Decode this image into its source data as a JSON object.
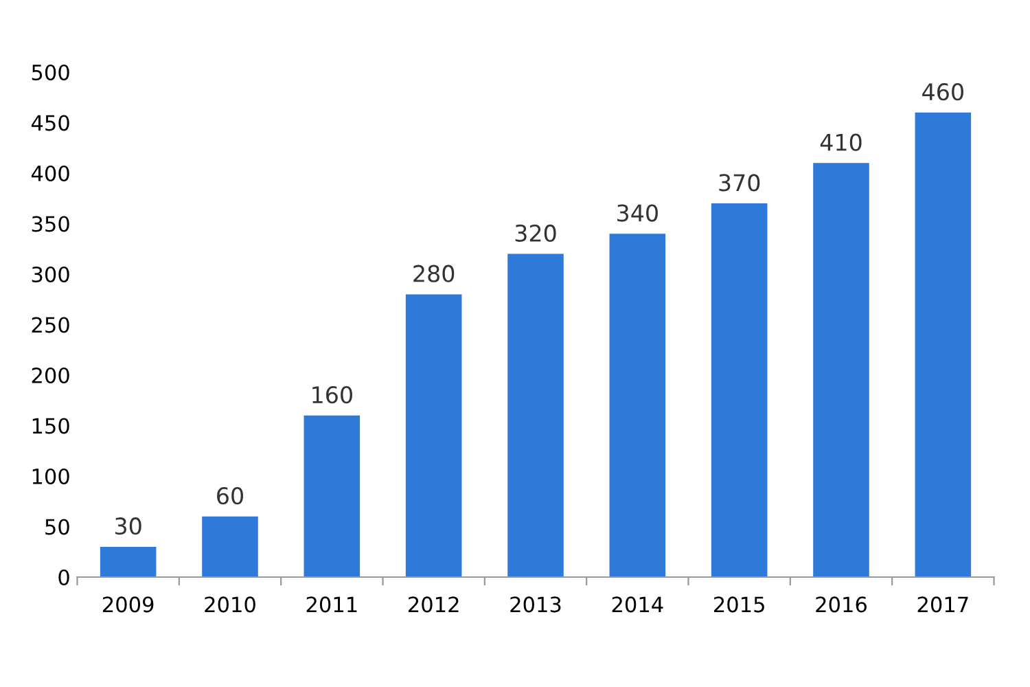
{
  "chart_data": {
    "type": "bar",
    "categories": [
      "2009",
      "2010",
      "2011",
      "2012",
      "2013",
      "2014",
      "2015",
      "2016",
      "2017"
    ],
    "values": [
      30,
      60,
      160,
      280,
      320,
      340,
      370,
      410,
      460
    ],
    "color": "#2f7ad8",
    "ylim": [
      0,
      500
    ],
    "yticks": [
      0,
      50,
      100,
      150,
      200,
      250,
      300,
      350,
      400,
      450,
      500
    ],
    "grid": false,
    "data_labels": true
  }
}
